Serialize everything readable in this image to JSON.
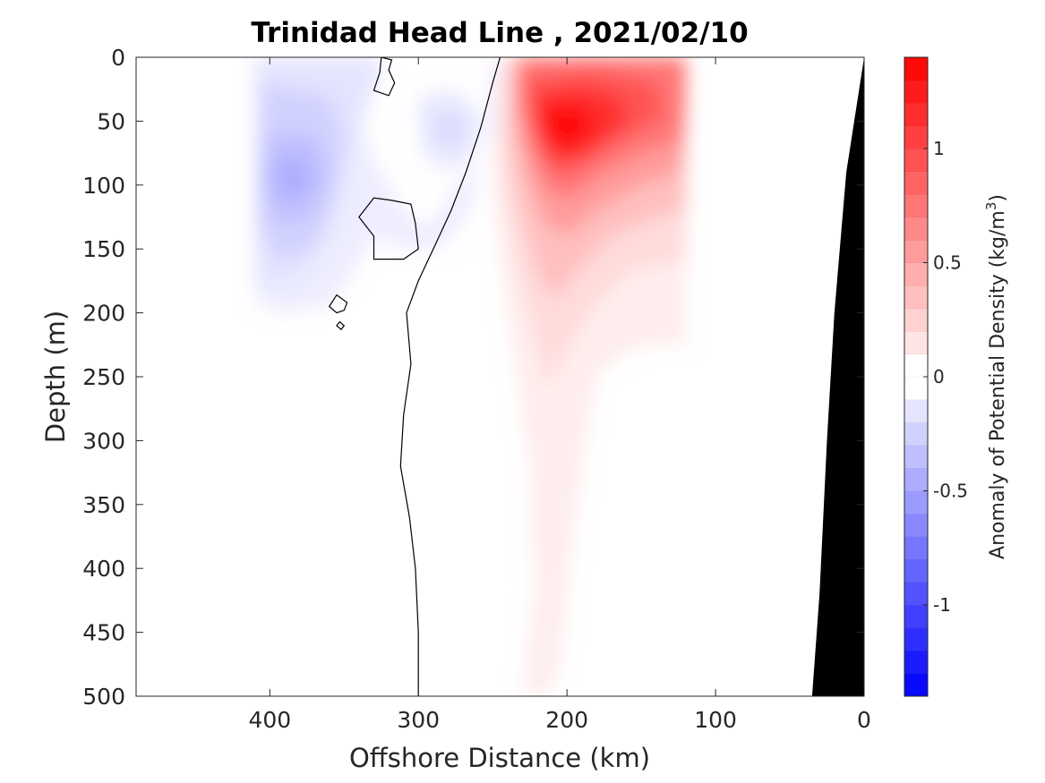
{
  "chart_data": {
    "type": "heatmap",
    "title": "Trinidad Head Line , 2021/02/10",
    "xlabel": "Offshore Distance (km)",
    "ylabel": "Depth (m)",
    "xlim": [
      490,
      0
    ],
    "ylim": [
      0,
      500
    ],
    "x_reversed": true,
    "y_reversed": true,
    "xticks": [
      "400",
      "300",
      "200",
      "100",
      "0"
    ],
    "yticks": [
      "0",
      "50",
      "100",
      "150",
      "200",
      "250",
      "300",
      "350",
      "400",
      "450",
      "500"
    ],
    "colorbar": {
      "label": "Anomaly of Potential Density (kg/m",
      "label_superscript": "3",
      "label_suffix": ")",
      "range": [
        -1.4,
        1.4
      ],
      "step": 0.1,
      "ticks": [
        "1",
        "0.5",
        "0",
        "-0.5",
        "-1"
      ],
      "negative_color": "#0000ff",
      "positive_color": "#ff0000",
      "zero_color": "#ffffff"
    },
    "anomaly_regions": [
      {
        "name": "Negative anomaly core (offshore)",
        "peak_value": -0.4,
        "center_km": 385,
        "center_depth_m": 90,
        "extent_km": [
          410,
          250
        ],
        "extent_depth_m": [
          0,
          200
        ]
      },
      {
        "name": "Negative anomaly (near 270 km)",
        "peak_value": -0.2,
        "center_km": 270,
        "center_depth_m": 60
      },
      {
        "name": "Positive anomaly core",
        "peak_value": 1.4,
        "center_km": 205,
        "center_depth_m": 55,
        "extent_km": [
          245,
          120
        ],
        "extent_depth_m": [
          0,
          500
        ]
      }
    ],
    "zero_contour": [
      [
        245,
        0
      ],
      [
        250,
        20
      ],
      [
        258,
        55
      ],
      [
        268,
        90
      ],
      [
        278,
        120
      ],
      [
        288,
        145
      ],
      [
        300,
        175
      ],
      [
        308,
        200
      ],
      [
        305,
        240
      ],
      [
        310,
        280
      ],
      [
        312,
        320
      ],
      [
        306,
        360
      ],
      [
        302,
        400
      ],
      [
        300,
        450
      ],
      [
        300,
        500
      ]
    ],
    "bathymetry": [
      [
        0,
        0
      ],
      [
        12,
        90
      ],
      [
        20,
        200
      ],
      [
        25,
        300
      ],
      [
        30,
        420
      ],
      [
        35,
        500
      ]
    ]
  }
}
